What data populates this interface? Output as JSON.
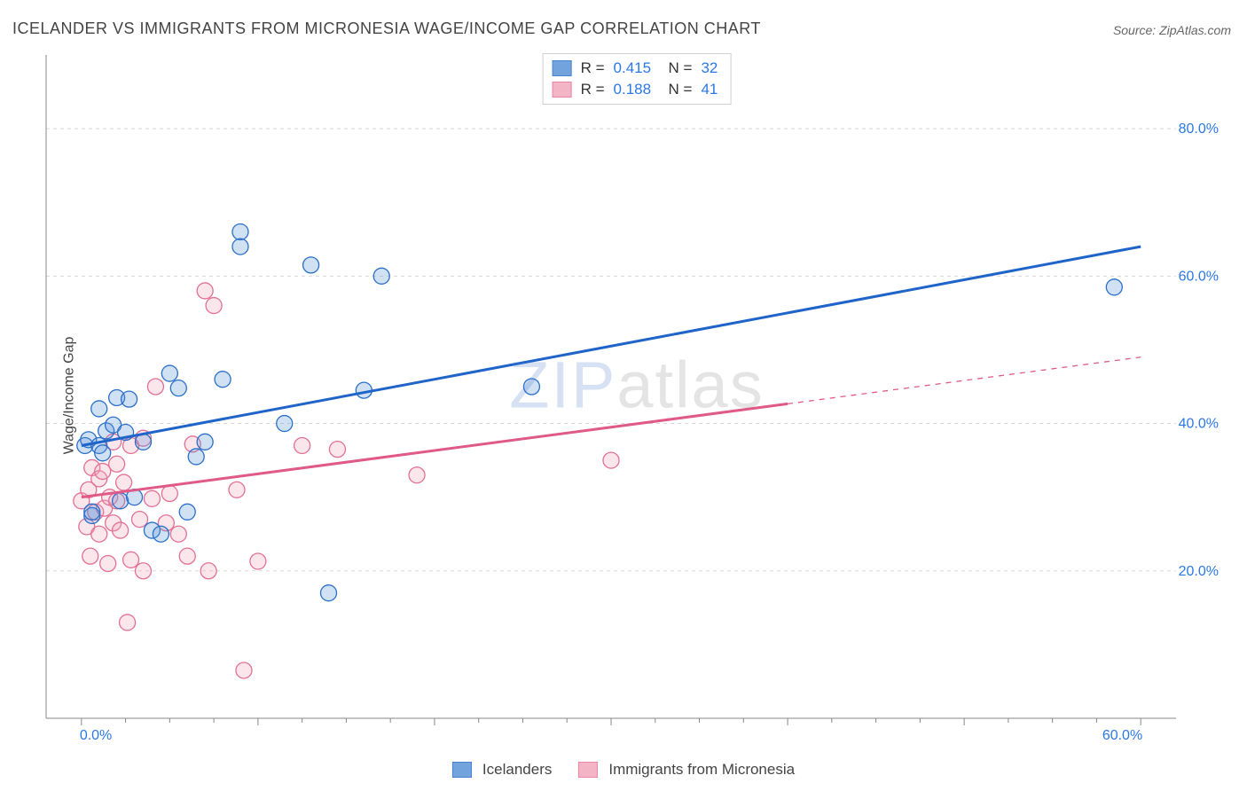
{
  "title": "ICELANDER VS IMMIGRANTS FROM MICRONESIA WAGE/INCOME GAP CORRELATION CHART",
  "source_label": "Source: ",
  "source_name": "ZipAtlas.com",
  "ylabel": "Wage/Income Gap",
  "watermark_zip": "ZIP",
  "watermark_atlas": "atlas",
  "chart": {
    "type": "scatter",
    "background_color": "#ffffff",
    "grid_color": "#d8d8d8",
    "axis_line_color": "#888888",
    "tick_label_color": "#2b78e4",
    "tick_fontsize": 16,
    "xlim": [
      -2,
      62
    ],
    "ylim": [
      0,
      90
    ],
    "xticks": [
      0,
      60
    ],
    "xtick_labels": [
      "0.0%",
      "60.0%"
    ],
    "yticks": [
      20,
      40,
      60,
      80
    ],
    "ytick_labels": [
      "20.0%",
      "40.0%",
      "60.0%",
      "80.0%"
    ],
    "marker_radius": 9,
    "marker_stroke_width": 1.3,
    "marker_fill_opacity": 0.28,
    "trend_line_width": 3,
    "series": [
      {
        "name": "Icelanders",
        "color": "#5a93d6",
        "stroke": "#2a6fc9",
        "trend_color": "#1f64c8",
        "R": "0.415",
        "N": "32",
        "trend": {
          "x1": 0,
          "y1": 37,
          "x2": 60,
          "y2": 64,
          "dash_after_x": null
        },
        "points": [
          [
            0.2,
            37.0
          ],
          [
            0.4,
            37.8
          ],
          [
            0.6,
            27.5
          ],
          [
            0.6,
            28.0
          ],
          [
            1.0,
            42.0
          ],
          [
            1.0,
            37.0
          ],
          [
            1.2,
            36.0
          ],
          [
            1.4,
            39.0
          ],
          [
            1.8,
            39.8
          ],
          [
            2.0,
            43.5
          ],
          [
            2.2,
            29.5
          ],
          [
            2.5,
            38.8
          ],
          [
            2.7,
            43.3
          ],
          [
            3.0,
            30.0
          ],
          [
            3.5,
            37.5
          ],
          [
            4.0,
            25.5
          ],
          [
            4.5,
            25.0
          ],
          [
            5.0,
            46.8
          ],
          [
            5.5,
            44.8
          ],
          [
            6.0,
            28.0
          ],
          [
            6.5,
            35.5
          ],
          [
            7.0,
            37.5
          ],
          [
            8.0,
            46.0
          ],
          [
            9.0,
            66.0
          ],
          [
            9.0,
            64.0
          ],
          [
            11.5,
            40.0
          ],
          [
            13.0,
            61.5
          ],
          [
            14.0,
            17.0
          ],
          [
            16.0,
            44.5
          ],
          [
            17.0,
            60.0
          ],
          [
            25.5,
            45.0
          ],
          [
            58.5,
            58.5
          ]
        ]
      },
      {
        "name": "Immigrants from Micronesia",
        "color": "#f2a7bc",
        "stroke": "#e27095",
        "trend_color": "#e05a87",
        "R": "0.188",
        "N": "41",
        "trend": {
          "x1": 0,
          "y1": 30,
          "x2": 60,
          "y2": 49,
          "dash_after_x": 40
        },
        "points": [
          [
            0.0,
            29.5
          ],
          [
            0.3,
            26.0
          ],
          [
            0.4,
            31.0
          ],
          [
            0.5,
            22.0
          ],
          [
            0.6,
            34.0
          ],
          [
            0.8,
            28.0
          ],
          [
            1.0,
            32.5
          ],
          [
            1.0,
            25.0
          ],
          [
            1.2,
            33.5
          ],
          [
            1.3,
            28.5
          ],
          [
            1.5,
            21.0
          ],
          [
            1.6,
            30.0
          ],
          [
            1.8,
            37.5
          ],
          [
            1.8,
            26.5
          ],
          [
            2.0,
            29.5
          ],
          [
            2.0,
            34.5
          ],
          [
            2.2,
            25.5
          ],
          [
            2.4,
            32.0
          ],
          [
            2.6,
            13.0
          ],
          [
            2.8,
            21.5
          ],
          [
            2.8,
            37.0
          ],
          [
            3.3,
            27.0
          ],
          [
            3.5,
            38.0
          ],
          [
            3.5,
            20.0
          ],
          [
            4.0,
            29.8
          ],
          [
            4.2,
            45.0
          ],
          [
            4.8,
            26.5
          ],
          [
            5.0,
            30.5
          ],
          [
            5.5,
            25.0
          ],
          [
            6.0,
            22.0
          ],
          [
            6.3,
            37.2
          ],
          [
            7.0,
            58.0
          ],
          [
            7.2,
            20.0
          ],
          [
            7.5,
            56.0
          ],
          [
            8.8,
            31.0
          ],
          [
            9.2,
            6.5
          ],
          [
            10.0,
            21.3
          ],
          [
            12.5,
            37.0
          ],
          [
            14.5,
            36.5
          ],
          [
            19.0,
            33.0
          ],
          [
            30.0,
            35.0
          ]
        ]
      }
    ]
  },
  "legend": {
    "items": [
      "Icelanders",
      "Immigrants from Micronesia"
    ]
  }
}
